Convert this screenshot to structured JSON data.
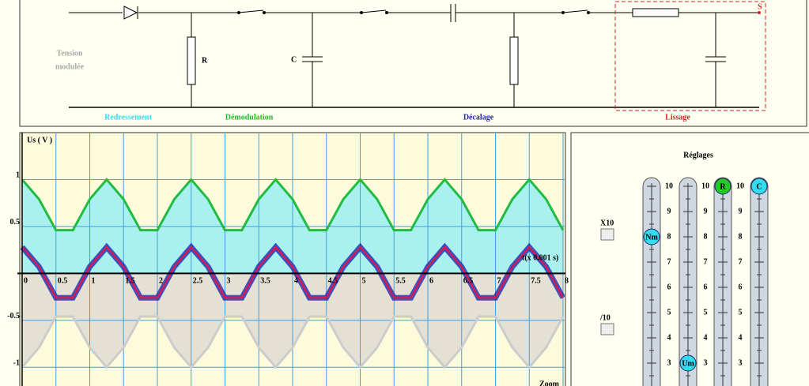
{
  "circuit": {
    "input_label": [
      "Tension",
      "modulée"
    ],
    "resistor_label": "R",
    "capacitor_label": "C",
    "output_label": "S",
    "stages": [
      {
        "label": "Redressement",
        "color": "#33ddee"
      },
      {
        "label": "Démodulation",
        "color": "#22bb22"
      },
      {
        "label": "Décalage",
        "color": "#2222aa"
      },
      {
        "label": "Lissage",
        "color": "#dd2222"
      }
    ]
  },
  "plot": {
    "y_label": "Us ( V )",
    "x_label": "t(x 0.001 s)",
    "corner_label": "Zoom",
    "xlim": [
      0,
      8
    ],
    "ylim": [
      -1.2,
      1.5
    ],
    "xticks": [
      0,
      0.5,
      1,
      1.5,
      2,
      2.5,
      3,
      3.5,
      4,
      4.5,
      5,
      5.5,
      6,
      6.5,
      7,
      7.5,
      8
    ],
    "yticks": [
      -1,
      -0.5,
      0.5,
      1
    ],
    "grid": true,
    "x": [
      0,
      0.25,
      0.5,
      0.75,
      1,
      1.25,
      1.5,
      1.75,
      2,
      2.25,
      2.5,
      2.75,
      3,
      3.25,
      3.5,
      3.75,
      4,
      4.25,
      4.5,
      4.75,
      5,
      5.25,
      5.5,
      5.75,
      6,
      6.25,
      6.5,
      6.75,
      7,
      7.25,
      7.5,
      7.75,
      8
    ],
    "series": [
      {
        "color": "#22bb44",
        "fill": "#aaf0ee",
        "values": [
          1.0,
          0.79,
          0.46,
          0.46,
          0.79,
          1.0,
          0.79,
          0.46,
          0.46,
          0.79,
          1.0,
          0.79,
          0.46,
          0.46,
          0.79,
          1.0,
          0.79,
          0.46,
          0.46,
          0.79,
          1.0,
          0.79,
          0.46,
          0.46,
          0.79,
          1.0,
          0.79,
          0.46,
          0.46,
          0.79,
          1.0,
          0.79,
          0.46
        ]
      },
      {
        "color": "#cccccc",
        "fill": "#e4e1d4",
        "values": [
          -1.0,
          -0.79,
          -0.46,
          -0.46,
          -0.79,
          -1.0,
          -0.79,
          -0.46,
          -0.46,
          -0.79,
          -1.0,
          -0.79,
          -0.46,
          -0.46,
          -0.79,
          -1.0,
          -0.79,
          -0.46,
          -0.46,
          -0.79,
          -1.0,
          -0.79,
          -0.46,
          -0.46,
          -0.79,
          -1.0,
          -0.79,
          -0.46,
          -0.46,
          -0.79,
          -1.0,
          -0.79,
          -0.46
        ]
      },
      {
        "color": "#ee1144",
        "values": [
          0.28,
          0.07,
          -0.26,
          -0.26,
          0.07,
          0.28,
          0.07,
          -0.26,
          -0.26,
          0.07,
          0.28,
          0.07,
          -0.26,
          -0.26,
          0.07,
          0.28,
          0.07,
          -0.26,
          -0.26,
          0.07,
          0.28,
          0.07,
          -0.26,
          -0.26,
          0.07,
          0.28,
          0.07,
          -0.26,
          -0.26,
          0.07,
          0.28,
          0.07,
          -0.26
        ]
      }
    ]
  },
  "controls": {
    "title": "Réglages",
    "buttons": [
      "X10",
      "/10"
    ],
    "scale": [
      10,
      9,
      8,
      7,
      6,
      5,
      4,
      3
    ],
    "sliders": [
      {
        "label": "Nm",
        "value": 8,
        "color": "#33ddee"
      },
      {
        "label": "Um",
        "value": 3,
        "color": "#33ddee"
      },
      {
        "label": "R",
        "value": 10,
        "color": "#22cc22"
      },
      {
        "label": "C",
        "value": 10,
        "color": "#33ddee"
      }
    ]
  }
}
